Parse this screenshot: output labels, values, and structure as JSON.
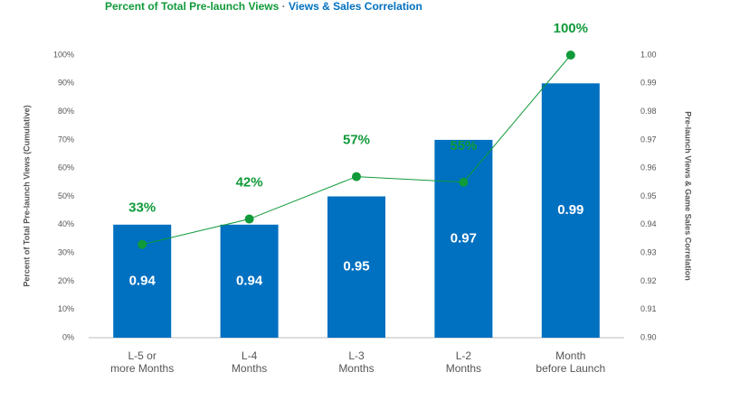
{
  "chart_data": {
    "type": "bar_line",
    "legend_separator": "·",
    "ylabel": "Percent of Total Pre-launch Views (Cumulative)",
    "y2label": "Pre-launch Views & Game Sales Correlation",
    "categories": [
      "L-5 or\nmore Months",
      "L-4\nMonths",
      "L-3\nMonths",
      "L-2\nMonths",
      "Month\nbefore Launch"
    ],
    "series": [
      {
        "name": "Views & Sales Correlation",
        "type": "bar",
        "axis": "y2",
        "color": "#0070c0",
        "values": [
          0.94,
          0.94,
          0.95,
          0.97,
          0.99
        ]
      },
      {
        "name": "Percent of Total Pre-launch Views",
        "type": "line",
        "color": "#109a3a",
        "values": [
          33,
          42,
          57,
          55,
          100
        ],
        "value_labels": [
          "33%",
          "42%",
          "57%",
          "55%",
          "100%"
        ]
      }
    ],
    "ylim": [
      0,
      100
    ],
    "yticks": [
      {
        "value": 0,
        "label": "0%"
      },
      {
        "value": 10,
        "label": "10%"
      },
      {
        "value": 20,
        "label": "20%"
      },
      {
        "value": 30,
        "label": "30%"
      },
      {
        "value": 40,
        "label": "40%"
      },
      {
        "value": 50,
        "label": "50%"
      },
      {
        "value": 60,
        "label": "60%"
      },
      {
        "value": 70,
        "label": "70%"
      },
      {
        "value": 80,
        "label": "80%"
      },
      {
        "value": 90,
        "label": "90%"
      },
      {
        "value": 100,
        "label": "100%"
      }
    ],
    "y2lim": [
      0.9,
      1.0
    ],
    "y2ticks": [
      {
        "value": 0.9,
        "label": "0.90"
      },
      0.91,
      0.92,
      0.93,
      0.94,
      0.95,
      0.96,
      0.97,
      0.98,
      0.99,
      {
        "value": 1.0,
        "label": "1.00"
      }
    ]
  }
}
